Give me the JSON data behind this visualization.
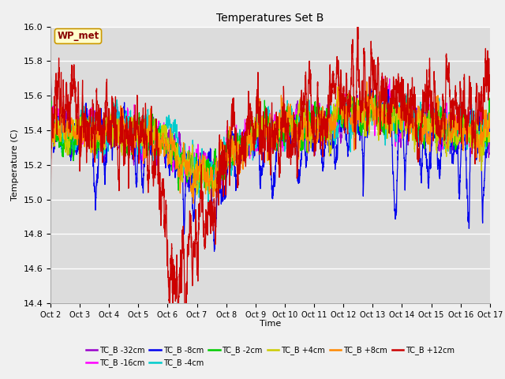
{
  "title": "Temperatures Set B",
  "xlabel": "Time",
  "ylabel": "Temperature (C)",
  "ylim": [
    14.4,
    16.0
  ],
  "yticks": [
    14.4,
    14.6,
    14.8,
    15.0,
    15.2,
    15.4,
    15.6,
    15.8,
    16.0
  ],
  "x_tick_labels": [
    "Oct 2",
    "Oct 3",
    "Oct 4",
    "Oct 5",
    "Oct 6",
    "Oct 7",
    "Oct 8",
    "Oct 9",
    "Oct 10",
    "Oct 11",
    "Oct 12",
    "Oct 13",
    "Oct 14",
    "Oct 15",
    "Oct 16",
    "Oct 17"
  ],
  "series": [
    {
      "label": "TC_B -32cm",
      "color": "#9900cc"
    },
    {
      "label": "TC_B -16cm",
      "color": "#ff00ff"
    },
    {
      "label": "TC_B -8cm",
      "color": "#0000ee"
    },
    {
      "label": "TC_B -4cm",
      "color": "#00cccc"
    },
    {
      "label": "TC_B -2cm",
      "color": "#00cc00"
    },
    {
      "label": "TC_B +4cm",
      "color": "#cccc00"
    },
    {
      "label": "TC_B +8cm",
      "color": "#ff8800"
    },
    {
      "label": "TC_B +12cm",
      "color": "#cc0000"
    }
  ],
  "annotation_label": "WP_met",
  "annotation_color": "#880000",
  "annotation_bg": "#ffffcc",
  "background_color": "#dcdcdc",
  "fig_bg": "#f0f0f0",
  "n_points": 4320,
  "seed": 42
}
